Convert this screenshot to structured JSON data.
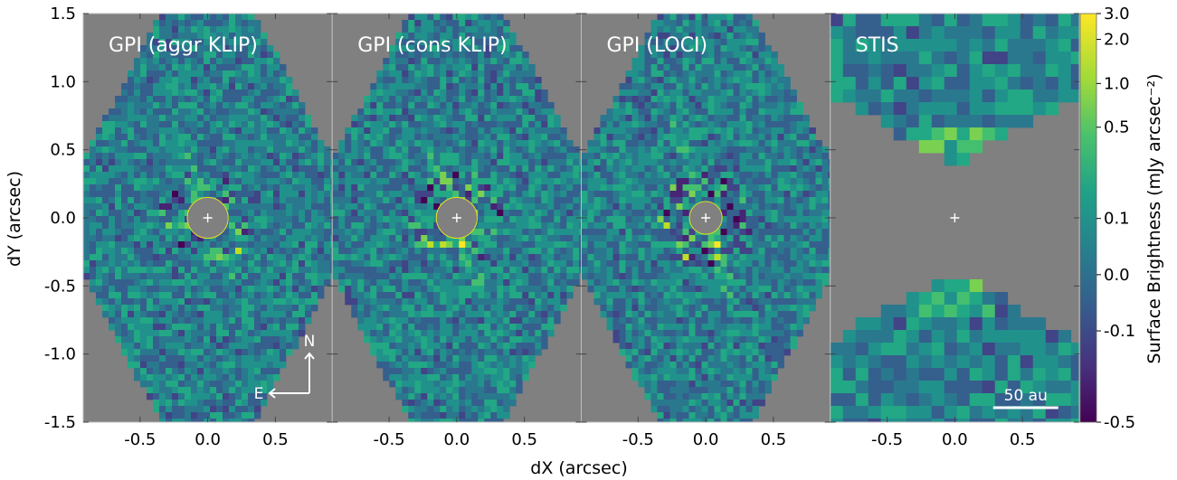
{
  "chart_data": {
    "type": "heatmap",
    "xlabel": "dX (arcsec)",
    "ylabel": "dY (arcsec)",
    "xlim": [
      -0.92,
      0.92
    ],
    "ylim": [
      -1.5,
      1.5
    ],
    "x_ticks": [
      "-0.5",
      "0.0",
      "0.5"
    ],
    "x_tick_values": [
      -0.5,
      0.0,
      0.5
    ],
    "y_ticks": [
      "1.5",
      "1.0",
      "0.5",
      "0.0",
      "-0.5",
      "-1.0",
      "-1.5"
    ],
    "y_tick_values": [
      1.5,
      1.0,
      0.5,
      0.0,
      -0.5,
      -1.0,
      -1.5
    ],
    "panels": [
      {
        "title": "GPI (aggr KLIP)",
        "mask_radius_arcsec": 0.15,
        "has_compass": true
      },
      {
        "title": "GPI (cons KLIP)",
        "mask_radius_arcsec": 0.15,
        "has_compass": false
      },
      {
        "title": "GPI (LOCI)",
        "mask_radius_arcsec": 0.12,
        "has_compass": false
      },
      {
        "title": "STIS",
        "mask_radius_arcsec": 0,
        "has_compass": false
      }
    ],
    "colorbar": {
      "label": "Surface Brightness (mJy arcsec⁻²)",
      "tick_labels": [
        "3.0",
        "2.0",
        "1.0",
        "0.5",
        "0.1",
        "0.0",
        "-0.1",
        "-0.5"
      ],
      "tick_values": [
        3.0,
        2.0,
        1.0,
        0.5,
        0.1,
        0.0,
        -0.1,
        -0.5
      ],
      "colormap": "viridis",
      "min": -0.5,
      "max": 3.0
    },
    "compass": {
      "north": "N",
      "east": "E"
    },
    "scalebar": {
      "label": "50 au"
    },
    "colors": {
      "masked": "#808080",
      "center_marker": "#ffffff"
    }
  }
}
